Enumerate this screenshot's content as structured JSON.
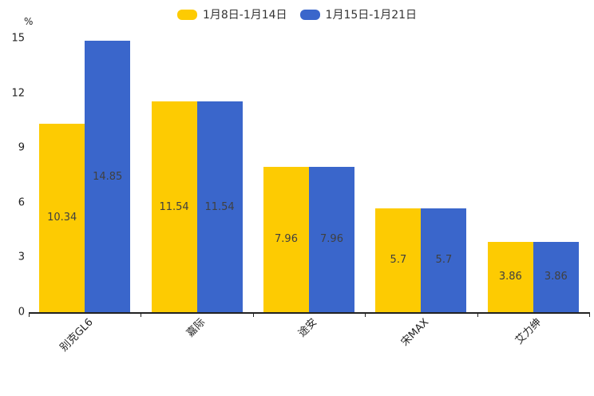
{
  "chart_data": {
    "type": "bar",
    "unit": "%",
    "ylabel": "%",
    "xlabel": "",
    "categories": [
      "别克GL6",
      "嘉际",
      "途安",
      "宋MAX",
      "艾力绅"
    ],
    "series": [
      {
        "name": "1月8日-1月14日",
        "color": "#FDCB02",
        "values": [
          10.34,
          11.54,
          7.96,
          5.7,
          3.86
        ]
      },
      {
        "name": "1月15日-1月21日",
        "color": "#3A66CB",
        "values": [
          14.85,
          11.54,
          7.96,
          5.7,
          3.86
        ]
      }
    ],
    "y_ticks": [
      0,
      3,
      6,
      9,
      12,
      15
    ],
    "ylim": [
      0,
      15
    ],
    "grid": false,
    "legend_position": "top",
    "value_labels": true,
    "colors": {
      "axis": "#222222",
      "value_label_text": "#404040",
      "tick_label_text": "#222222",
      "legend_text": "#333333",
      "background": "#ffffff"
    }
  }
}
